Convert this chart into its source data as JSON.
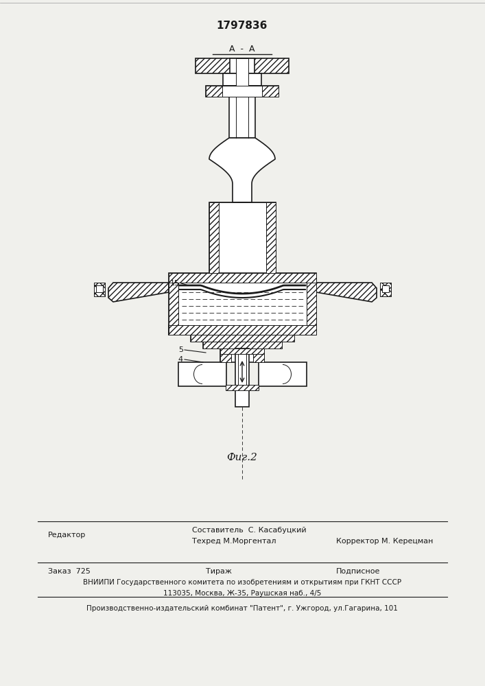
{
  "patent_number": "1797836",
  "fig_label": "Фиг.2",
  "section_label": "А  -  А",
  "bg_color": "#f0f0ec",
  "line_color": "#1a1a1a",
  "footer": {
    "editor": "Редактор",
    "composer": "Составитель  С. Касабуцкий",
    "techred": "Техред М.Моргентал",
    "corrector": "Корректор М. Керецман",
    "order": "Заказ  725",
    "tirazh": "Тираж",
    "podpisnoe": "Подписное",
    "vniiipi1": "ВНИИПИ Государственного комитета по изобретениям и открытиям при ГКНТ СССР",
    "vniiipi2": "113035, Москва, Ж-35, Раушская наб., 4/5",
    "publisher": "Производственно-издательский комбинат \"Патент\", г. Ужгород, ул.Гагарина, 101"
  }
}
